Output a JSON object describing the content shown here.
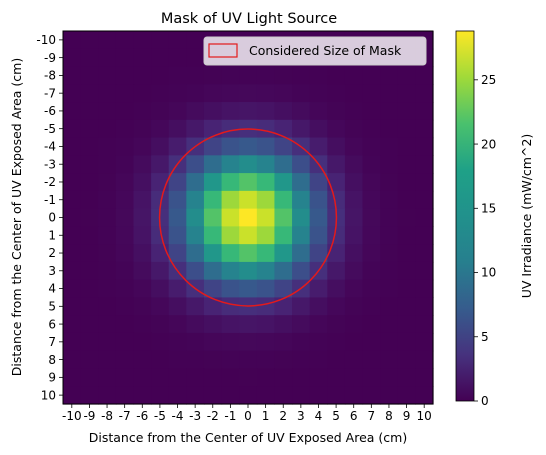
{
  "chart_data": {
    "type": "heatmap",
    "title": "Mask of UV Light Source",
    "xlabel": "Distance from the Center of UV Exposed Area (cm)",
    "ylabel": "Distance from the Center of UV Exposed Area (cm)",
    "x_ticks": [
      -10,
      -9,
      -8,
      -7,
      -6,
      -5,
      -4,
      -3,
      -2,
      -1,
      0,
      1,
      2,
      3,
      4,
      5,
      6,
      7,
      8,
      9,
      10
    ],
    "y_ticks": [
      -10,
      -9,
      -8,
      -7,
      -6,
      -5,
      -4,
      -3,
      -2,
      -1,
      0,
      1,
      2,
      3,
      4,
      5,
      6,
      7,
      8,
      9,
      10
    ],
    "y_axis_inverted": true,
    "value_model": "gaussian",
    "peak_value": 28.8,
    "sigma_cm": 2.5,
    "colormap": "viridis",
    "colorbar": {
      "label": "UV Irradiance (mW/cm^2)",
      "ticks": [
        0,
        5,
        10,
        15,
        20,
        25
      ],
      "range": [
        0,
        28.8
      ]
    },
    "mask_circle": {
      "center": [
        0,
        0
      ],
      "radius_cm": 5,
      "color": "#e31a1c"
    },
    "legend": {
      "label": "Considered Size of Mask",
      "position": "upper right"
    }
  }
}
